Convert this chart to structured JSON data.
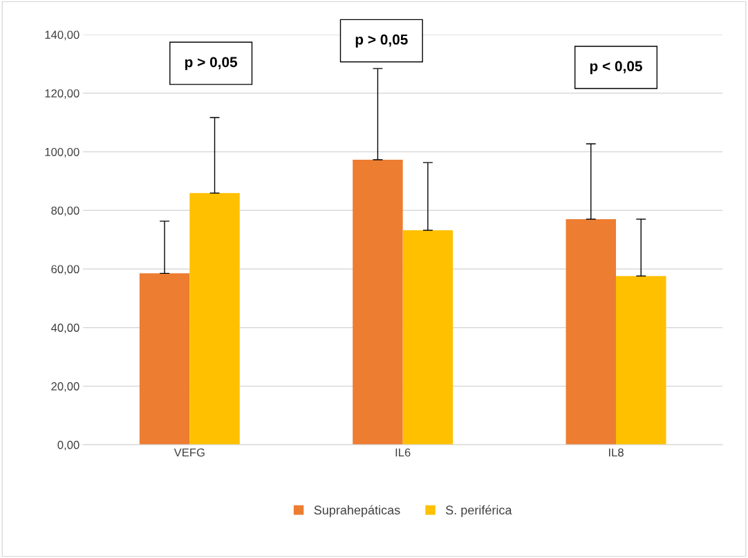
{
  "chart_data": {
    "type": "bar",
    "categories": [
      "VEFG",
      "IL6",
      "IL8"
    ],
    "series": [
      {
        "name": "Suprahepáticas",
        "color": "#ed7d31",
        "values": [
          58.5,
          97.3,
          77.0
        ],
        "errors": [
          [
            58.5,
            76.3
          ],
          [
            97.3,
            128.4
          ],
          [
            77.0,
            102.7
          ]
        ]
      },
      {
        "name": "S. periférica",
        "color": "#ffc000",
        "values": [
          85.9,
          73.2,
          57.6
        ],
        "errors": [
          [
            85.9,
            111.7
          ],
          [
            73.2,
            96.3
          ],
          [
            57.6,
            77.0
          ]
        ]
      }
    ],
    "ylim": [
      0,
      140
    ],
    "yticks": [
      {
        "value": 0,
        "label": "0,00"
      },
      {
        "value": 20,
        "label": "20,00"
      },
      {
        "value": 40,
        "label": "40,00"
      },
      {
        "value": 60,
        "label": "60,00"
      },
      {
        "value": 80,
        "label": "80,00"
      },
      {
        "value": 100,
        "label": "100,00"
      },
      {
        "value": 120,
        "label": "120,00"
      },
      {
        "value": 140,
        "label": "140,00"
      }
    ],
    "grid": "y",
    "legend": "bottom",
    "annotations": [
      "p > 0,05",
      "p > 0,05",
      "p < 0,05"
    ]
  }
}
